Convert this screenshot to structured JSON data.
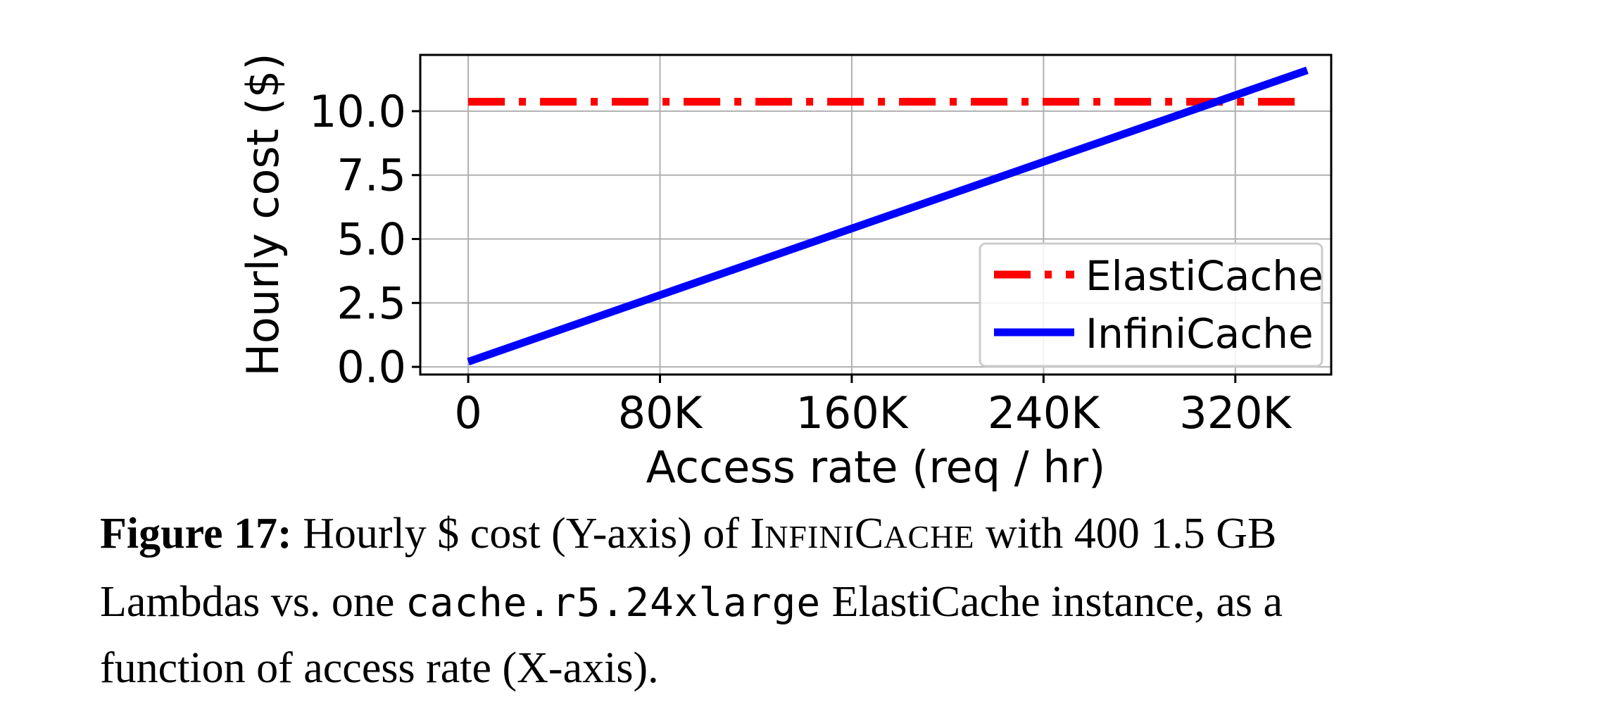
{
  "chart_data": {
    "type": "line",
    "xlabel": "Access rate (req / hr)",
    "ylabel": "Hourly cost ($)",
    "xlim": [
      -20000,
      360000
    ],
    "ylim": [
      -0.3,
      12.2
    ],
    "x_ticks": [
      0,
      80000,
      160000,
      240000,
      320000
    ],
    "x_tick_labels": [
      "0",
      "80K",
      "160K",
      "240K",
      "320K"
    ],
    "y_ticks": [
      0,
      2.5,
      5,
      7.5,
      10
    ],
    "y_tick_labels": [
      "0.0",
      "2.5",
      "5.0",
      "7.5",
      "10.0"
    ],
    "grid": true,
    "legend_position": "lower-right",
    "series": [
      {
        "name": "ElastiCache",
        "color": "#ff0000",
        "line_style": "dash-dot",
        "x": [
          0,
          350000
        ],
        "y": [
          10.37,
          10.37
        ]
      },
      {
        "name": "InfiniCache",
        "color": "#0000ff",
        "line_style": "solid",
        "x": [
          0,
          350000
        ],
        "y": [
          0.2,
          11.6
        ]
      }
    ]
  },
  "caption": {
    "label": "Figure 17:",
    "part1": " Hourly $ cost (Y-axis) of ",
    "name_i": "I",
    "name_nfini": "NFINI",
    "name_c": "C",
    "name_ache": "ACHE",
    "part2": " with 400 1.5 GB",
    "part3": "Lambdas vs. one ",
    "instance": "cache.r5.24xlarge",
    "part4": " ElastiCache instance, as a",
    "part5": "function of access rate (X-axis)."
  }
}
